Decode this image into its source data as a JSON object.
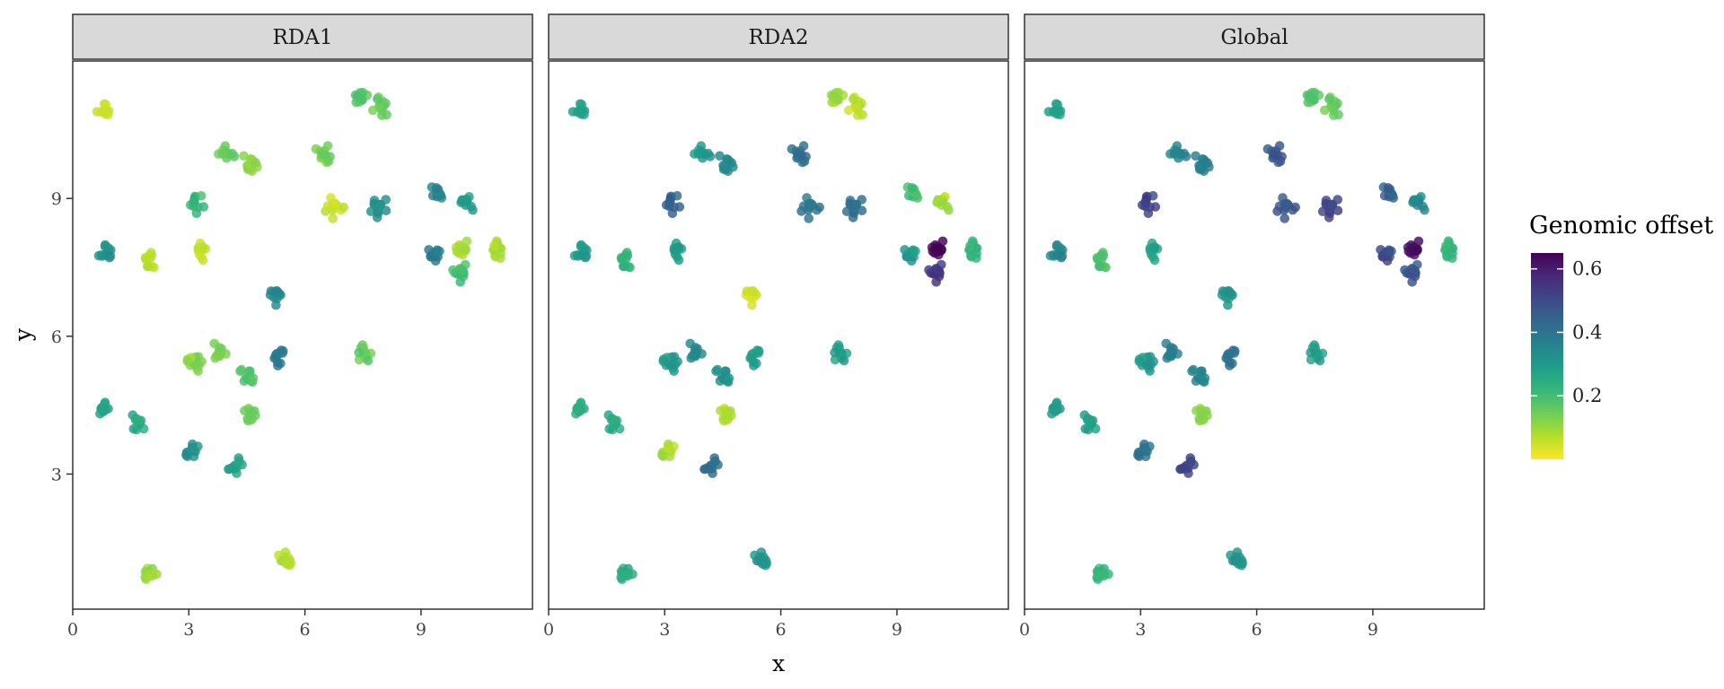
{
  "chart_data": {
    "type": "scatter",
    "facets": [
      "RDA1",
      "RDA2",
      "Global"
    ],
    "xlabel": "x",
    "ylabel": "y",
    "xlim": [
      0,
      11.5
    ],
    "ylim": [
      0,
      12
    ],
    "xticks": [
      0,
      3,
      6,
      9
    ],
    "yticks": [
      3,
      6,
      9
    ],
    "grid": false,
    "legend": {
      "title": "Genomic offset",
      "placement": "right",
      "type": "colorbar",
      "palette": "viridis",
      "range": [
        0.0,
        0.65
      ],
      "ticks": [
        0.2,
        0.4,
        0.6
      ],
      "colors": [
        "#fde725",
        "#b5de2b",
        "#6ece58",
        "#35b779",
        "#1f9e89",
        "#26828e",
        "#31688e",
        "#3e4989",
        "#482878",
        "#440154"
      ]
    },
    "clusters": [
      {
        "x": 0.8,
        "y": 10.9,
        "offset": [
          0.05,
          0.28,
          0.28
        ]
      },
      {
        "x": 7.4,
        "y": 11.2,
        "offset": [
          0.18,
          0.1,
          0.18
        ]
      },
      {
        "x": 7.95,
        "y": 11.0,
        "offset": [
          0.15,
          0.06,
          0.15
        ]
      },
      {
        "x": 6.5,
        "y": 9.95,
        "offset": [
          0.15,
          0.42,
          0.48
        ]
      },
      {
        "x": 4.6,
        "y": 9.75,
        "offset": [
          0.12,
          0.35,
          0.38
        ]
      },
      {
        "x": 3.95,
        "y": 9.95,
        "offset": [
          0.15,
          0.3,
          0.35
        ]
      },
      {
        "x": 3.2,
        "y": 8.9,
        "offset": [
          0.22,
          0.45,
          0.52
        ]
      },
      {
        "x": 6.8,
        "y": 8.8,
        "offset": [
          0.06,
          0.4,
          0.48
        ]
      },
      {
        "x": 7.9,
        "y": 8.8,
        "offset": [
          0.33,
          0.42,
          0.52
        ]
      },
      {
        "x": 9.45,
        "y": 9.1,
        "offset": [
          0.36,
          0.2,
          0.45
        ]
      },
      {
        "x": 10.2,
        "y": 8.9,
        "offset": [
          0.3,
          0.1,
          0.35
        ]
      },
      {
        "x": 0.9,
        "y": 7.85,
        "offset": [
          0.32,
          0.3,
          0.35
        ]
      },
      {
        "x": 2.0,
        "y": 7.6,
        "offset": [
          0.06,
          0.22,
          0.18
        ]
      },
      {
        "x": 3.3,
        "y": 7.9,
        "offset": [
          0.06,
          0.3,
          0.28
        ]
      },
      {
        "x": 9.4,
        "y": 7.75,
        "offset": [
          0.38,
          0.3,
          0.5
        ]
      },
      {
        "x": 10.1,
        "y": 7.9,
        "offset": [
          0.08,
          0.64,
          0.62
        ]
      },
      {
        "x": 11.0,
        "y": 7.9,
        "offset": [
          0.08,
          0.22,
          0.22
        ]
      },
      {
        "x": 10.05,
        "y": 7.35,
        "offset": [
          0.2,
          0.55,
          0.48
        ]
      },
      {
        "x": 5.3,
        "y": 6.85,
        "offset": [
          0.35,
          0.05,
          0.32
        ]
      },
      {
        "x": 3.2,
        "y": 5.4,
        "offset": [
          0.12,
          0.3,
          0.3
        ]
      },
      {
        "x": 3.8,
        "y": 5.6,
        "offset": [
          0.14,
          0.35,
          0.38
        ]
      },
      {
        "x": 4.5,
        "y": 5.1,
        "offset": [
          0.18,
          0.32,
          0.35
        ]
      },
      {
        "x": 5.3,
        "y": 5.5,
        "offset": [
          0.38,
          0.28,
          0.4
        ]
      },
      {
        "x": 7.5,
        "y": 5.6,
        "offset": [
          0.15,
          0.28,
          0.28
        ]
      },
      {
        "x": 0.8,
        "y": 4.45,
        "offset": [
          0.28,
          0.25,
          0.3
        ]
      },
      {
        "x": 1.6,
        "y": 4.1,
        "offset": [
          0.25,
          0.25,
          0.28
        ]
      },
      {
        "x": 4.6,
        "y": 4.3,
        "offset": [
          0.15,
          0.08,
          0.12
        ]
      },
      {
        "x": 3.1,
        "y": 3.5,
        "offset": [
          0.32,
          0.08,
          0.4
        ]
      },
      {
        "x": 4.2,
        "y": 3.2,
        "offset": [
          0.28,
          0.42,
          0.52
        ]
      },
      {
        "x": 2.0,
        "y": 0.85,
        "offset": [
          0.1,
          0.25,
          0.22
        ]
      },
      {
        "x": 5.5,
        "y": 1.1,
        "offset": [
          0.08,
          0.32,
          0.32
        ]
      }
    ]
  }
}
